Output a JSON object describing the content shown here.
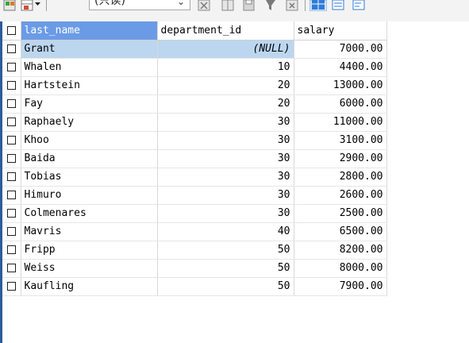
{
  "toolbar": {
    "mode_label": "(只读)",
    "dropdown_icon": "chevron-down-icon",
    "icons": [
      "export-icon",
      "filter-icon",
      "save-icon",
      "clear-filter-icon",
      "delete-icon",
      "grid-view-icon",
      "form-view-icon",
      "text-view-icon"
    ],
    "colors": {
      "grid_view_active": "#2f7bd8",
      "accent": "#6b9be6"
    }
  },
  "grid": {
    "columns": [
      "last_name",
      "department_id",
      "salary"
    ],
    "active_column": "last_name",
    "rows": [
      {
        "last_name": "Grant",
        "department_id": "(NULL)",
        "salary": "7000.00"
      },
      {
        "last_name": "Whalen",
        "department_id": "10",
        "salary": "4400.00"
      },
      {
        "last_name": "Hartstein",
        "department_id": "20",
        "salary": "13000.00"
      },
      {
        "last_name": "Fay",
        "department_id": "20",
        "salary": "6000.00"
      },
      {
        "last_name": "Raphaely",
        "department_id": "30",
        "salary": "11000.00"
      },
      {
        "last_name": "Khoo",
        "department_id": "30",
        "salary": "3100.00"
      },
      {
        "last_name": "Baida",
        "department_id": "30",
        "salary": "2900.00"
      },
      {
        "last_name": "Tobias",
        "department_id": "30",
        "salary": "2800.00"
      },
      {
        "last_name": "Himuro",
        "department_id": "30",
        "salary": "2600.00"
      },
      {
        "last_name": "Colmenares",
        "department_id": "30",
        "salary": "2500.00"
      },
      {
        "last_name": "Mavris",
        "department_id": "40",
        "salary": "6500.00"
      },
      {
        "last_name": "Fripp",
        "department_id": "50",
        "salary": "8200.00"
      },
      {
        "last_name": "Weiss",
        "department_id": "50",
        "salary": "8000.00"
      },
      {
        "last_name": "Kaufling",
        "department_id": "50",
        "salary": "7900.00"
      }
    ]
  }
}
